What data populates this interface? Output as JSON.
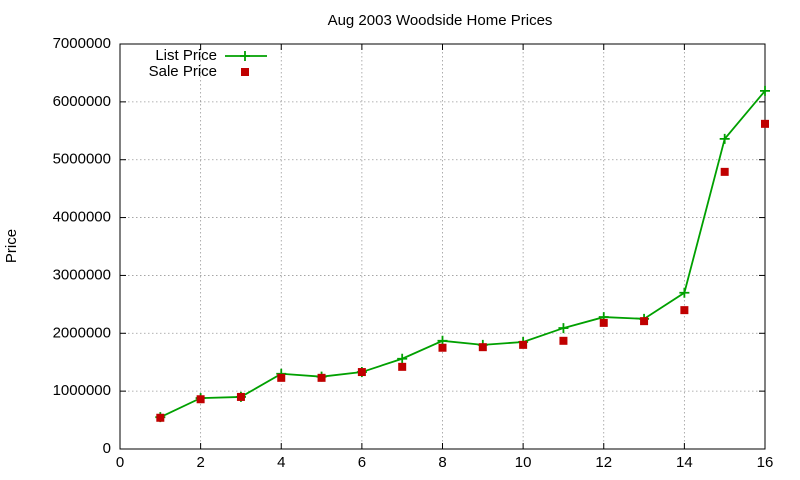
{
  "chart_data": {
    "type": "line",
    "title": "Aug 2003 Woodside Home Prices",
    "y_label": "Price",
    "x": [
      1,
      2,
      3,
      4,
      5,
      6,
      7,
      8,
      9,
      10,
      11,
      12,
      13,
      14,
      15,
      16
    ],
    "series": [
      {
        "name": "List Price",
        "color": "#00a000",
        "line": true,
        "marker": "plus",
        "values": [
          550000,
          880000,
          900000,
          1300000,
          1250000,
          1330000,
          1560000,
          1870000,
          1800000,
          1850000,
          2090000,
          2280000,
          2250000,
          2700000,
          5360000,
          6190000
        ]
      },
      {
        "name": "Sale Price",
        "color": "#c00000",
        "line": false,
        "marker": "square",
        "values": [
          540000,
          860000,
          900000,
          1230000,
          1230000,
          1330000,
          1420000,
          1750000,
          1760000,
          1800000,
          1870000,
          2180000,
          2210000,
          2400000,
          4790000,
          5620000
        ]
      }
    ],
    "xlim": [
      0,
      16
    ],
    "xticks": [
      0,
      2,
      4,
      6,
      8,
      10,
      12,
      14,
      16
    ],
    "ylim": [
      0,
      7000000
    ],
    "yticks": [
      0,
      1000000,
      2000000,
      3000000,
      4000000,
      5000000,
      6000000,
      7000000
    ],
    "grid": true,
    "legend": "top-left"
  }
}
